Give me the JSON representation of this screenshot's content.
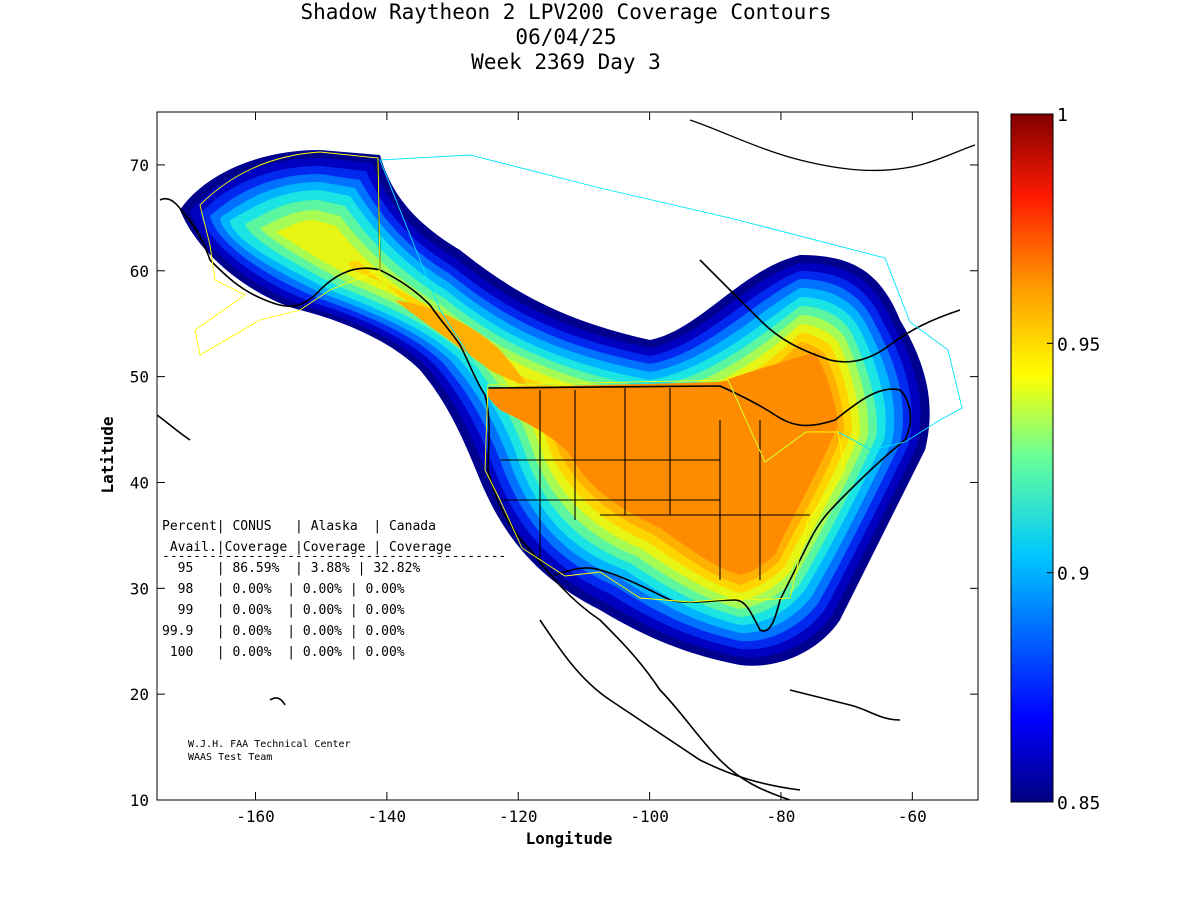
{
  "title": {
    "line1": "Shadow Raytheon 2 LPV200 Coverage Contours",
    "line2": "06/04/25",
    "line3": "Week 2369 Day 3"
  },
  "axes": {
    "xlabel": "Longitude",
    "ylabel": "Latitude",
    "x_ticks": [
      "-160",
      "-140",
      "-120",
      "-100",
      "-80",
      "-60"
    ],
    "y_ticks": [
      "10",
      "20",
      "30",
      "40",
      "50",
      "60",
      "70"
    ],
    "xlim": [
      -175,
      -50
    ],
    "ylim": [
      10,
      75
    ]
  },
  "colorbar": {
    "ticks": [
      "0.85",
      "0.9",
      "0.95",
      "1"
    ],
    "min": 0.85,
    "max": 1.0
  },
  "table": {
    "header1": "Percent| CONUS   | Alaska  | Canada",
    "header2": " Avail.|Coverage |Coverage | Coverage",
    "rule": "--------------------------------------------",
    "rows": [
      "  95   | 86.59%  | 3.88% | 32.82%",
      "  98   | 0.00%  | 0.00% | 0.00%",
      "  99   | 0.00%  | 0.00% | 0.00%",
      "99.9   | 0.00%  | 0.00% | 0.00%",
      " 100   | 0.00%  | 0.00% | 0.00%"
    ]
  },
  "credits": {
    "line1": "W.J.H. FAA Technical Center",
    "line2": "WAAS Test Team"
  },
  "colors": {
    "core": "#ff8c00",
    "c95": "#ffb000",
    "c94": "#ffd500",
    "c93": "#e6f514",
    "c92": "#a6fb55",
    "c91": "#5cf6a0",
    "c90": "#1ae4e4",
    "c89": "#00b4ff",
    "c88": "#0072ff",
    "c87": "#0028ef",
    "c86": "#0000c0",
    "c85": "#00008f"
  }
}
